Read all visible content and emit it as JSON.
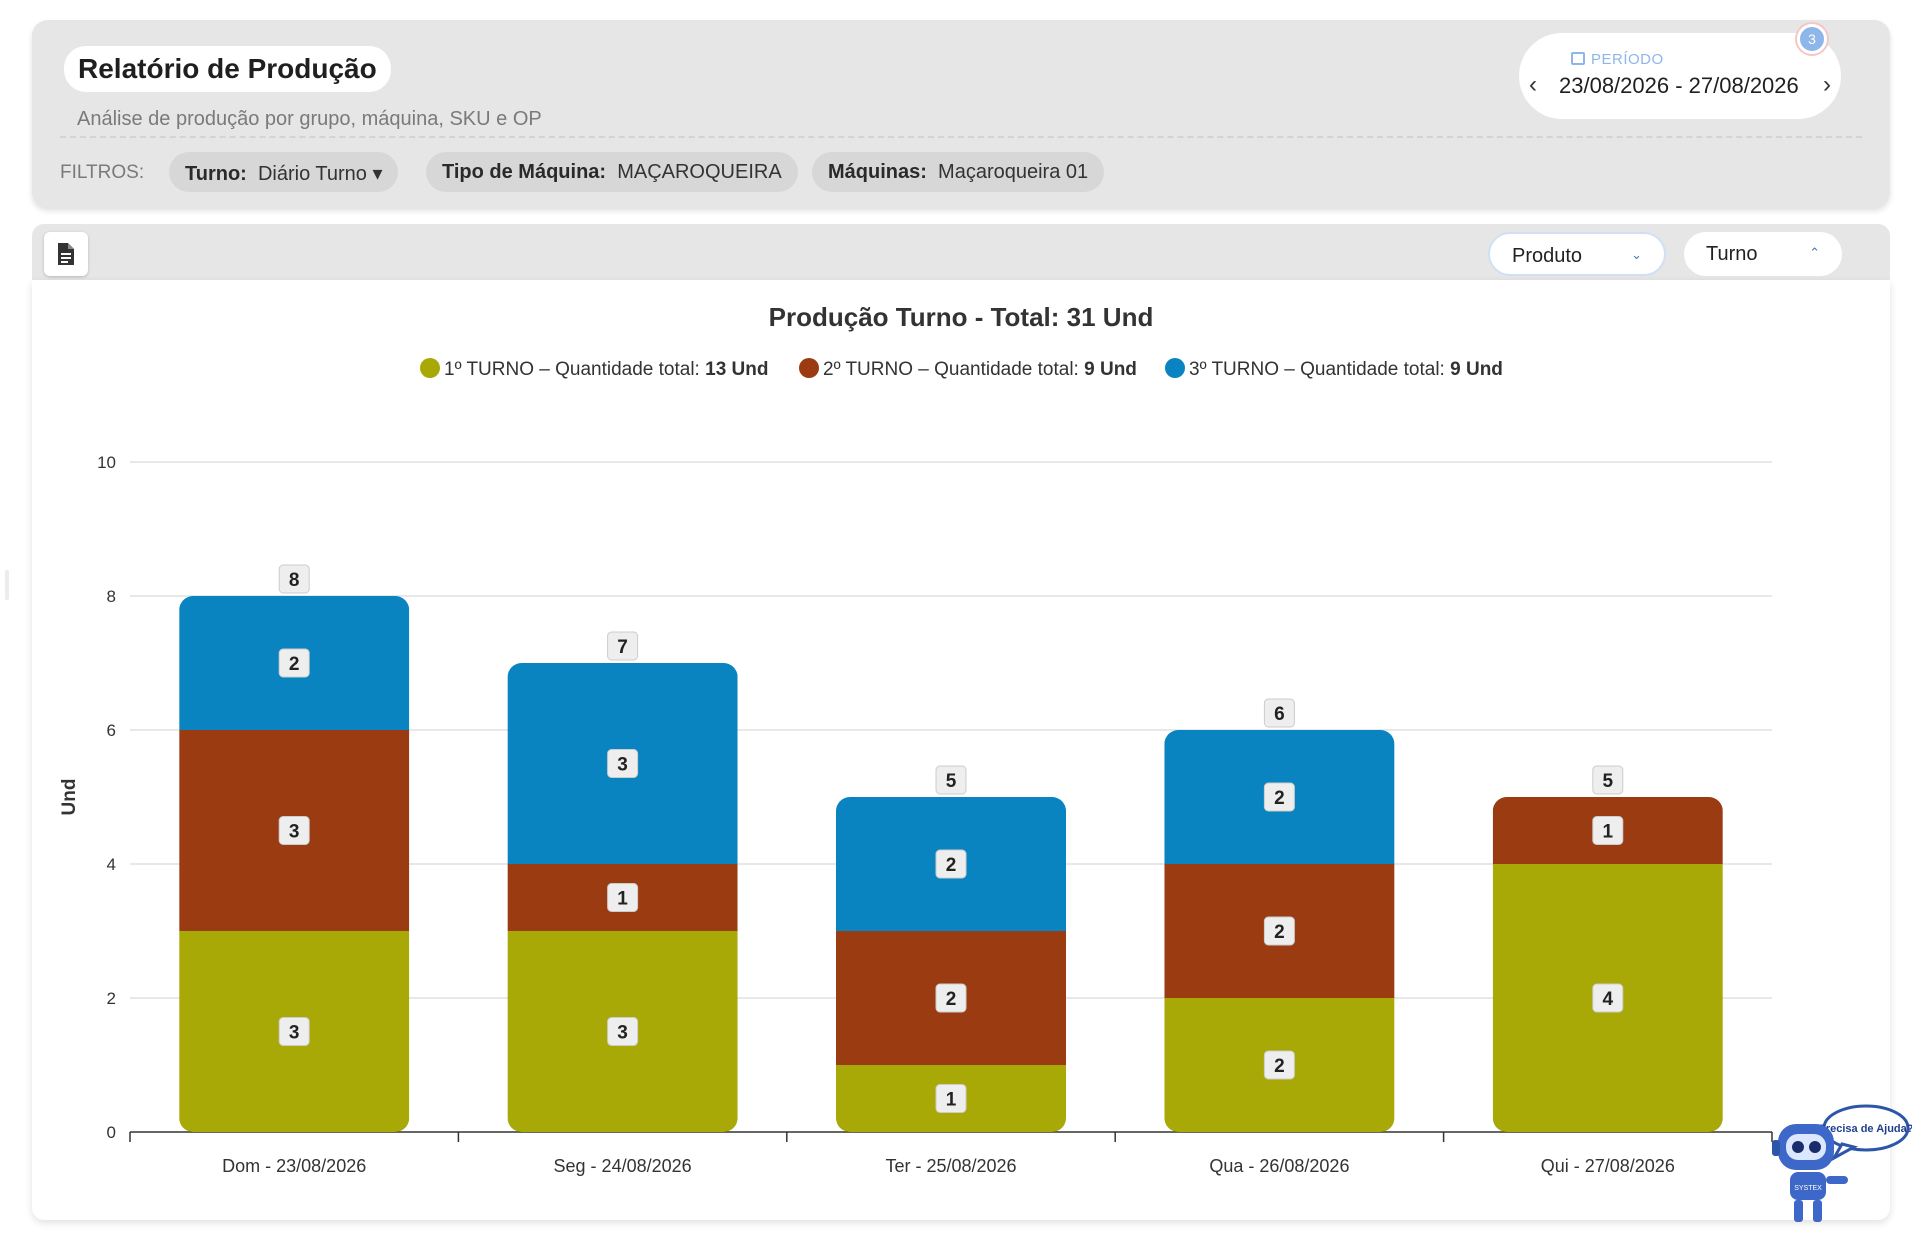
{
  "header": {
    "title": "Relatório de Produção",
    "subtitle": "Análise de produção por grupo, máquina, SKU e OP",
    "period_label": "PERÍODO",
    "period_value": "23/08/2026 - 27/08/2026",
    "badge_count": "3",
    "filters_label": "FILTROS:",
    "filters": [
      {
        "key": "Turno:",
        "value": "Diário Turno ▾"
      },
      {
        "key": "Tipo de Máquina:",
        "value": "MAÇAROQUEIRA"
      },
      {
        "key": "Máquinas:",
        "value": "Maçaroqueira 01"
      }
    ]
  },
  "toolbar": {
    "product_select": "Produto",
    "turno_select": "Turno"
  },
  "help": {
    "bubble_text": "Precisa de Ajuda?",
    "bot_label": "SYSTEX"
  },
  "colors": {
    "turno1": "#a8a806",
    "turno2": "#9a3b12",
    "turno3": "#0a84c0"
  },
  "chart_data": {
    "type": "bar",
    "stacked": true,
    "title": "Produção Turno - Total: 31 Und",
    "ylabel": "Und",
    "xlabel": "",
    "ylim": [
      0,
      10
    ],
    "yticks": [
      0,
      2,
      4,
      6,
      8,
      10
    ],
    "grid": true,
    "legend_position": "top",
    "categories": [
      "Dom - 23/08/2026",
      "Seg - 24/08/2026",
      "Ter - 25/08/2026",
      "Qua - 26/08/2026",
      "Qui - 27/08/2026"
    ],
    "series": [
      {
        "name": "1º TURNO",
        "legend_text": "1º TURNO – Quantidade total: ",
        "legend_total": "13 Und",
        "color": "#a8a806",
        "values": [
          3,
          3,
          1,
          2,
          4
        ]
      },
      {
        "name": "2º TURNO",
        "legend_text": "2º TURNO – Quantidade total: ",
        "legend_total": "9 Und",
        "color": "#9a3b12",
        "values": [
          3,
          1,
          2,
          2,
          1
        ]
      },
      {
        "name": "3º TURNO",
        "legend_text": "3º TURNO – Quantidade total: ",
        "legend_total": "9 Und",
        "color": "#0a84c0",
        "values": [
          2,
          3,
          2,
          2,
          0
        ]
      }
    ],
    "totals": [
      8,
      7,
      5,
      6,
      5
    ]
  }
}
